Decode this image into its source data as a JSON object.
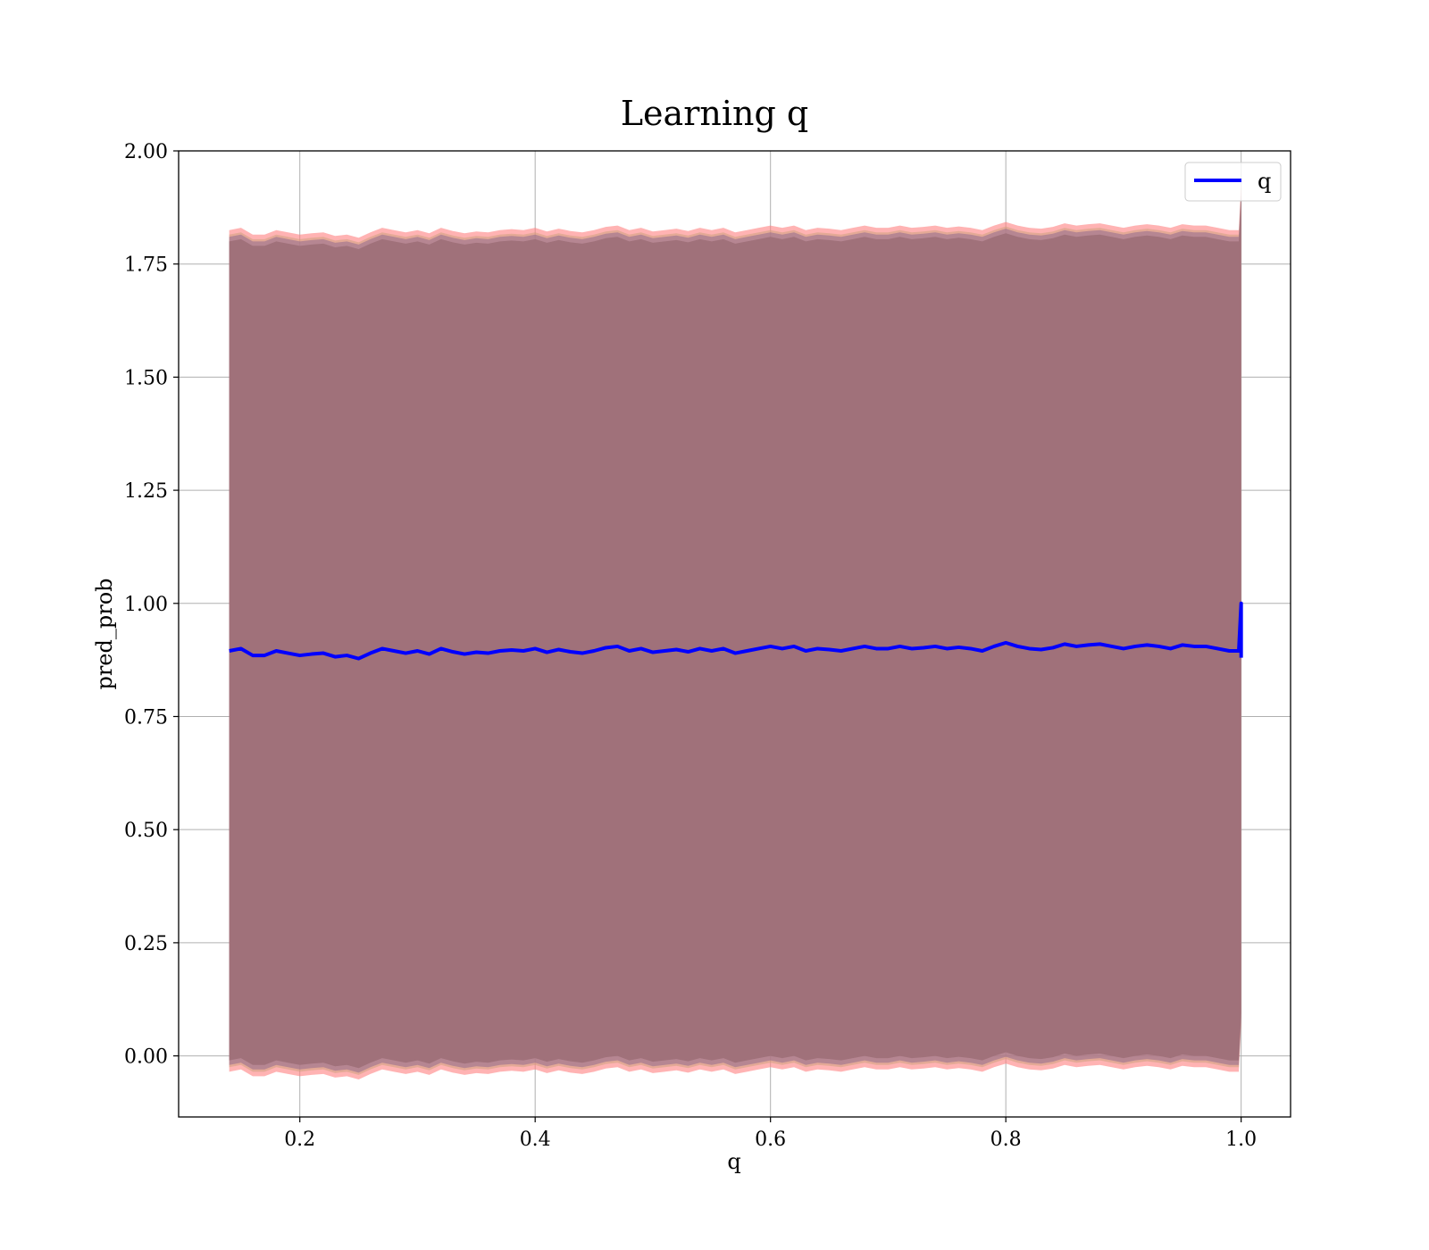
{
  "chart_data": {
    "type": "line",
    "title": "Learning q",
    "xlabel": "q",
    "ylabel": "pred_prob",
    "xlim": [
      0.097,
      1.042
    ],
    "ylim": [
      -0.135,
      2.0
    ],
    "x_ticks": [
      "0.2",
      "0.4",
      "0.6",
      "0.8",
      "1.0"
    ],
    "x_tick_values": [
      0.2,
      0.4,
      0.6,
      0.8,
      1.0
    ],
    "y_ticks": [
      "0.00",
      "0.25",
      "0.50",
      "0.75",
      "1.00",
      "1.25",
      "1.50",
      "1.75",
      "2.00"
    ],
    "y_tick_values": [
      0.0,
      0.25,
      0.5,
      0.75,
      1.0,
      1.25,
      1.5,
      1.75,
      2.0
    ],
    "grid": true,
    "legend": {
      "position": "top-right",
      "entries": [
        "q"
      ]
    },
    "series": [
      {
        "name": "q",
        "color": "#0000ff",
        "x": [
          0.14,
          0.15,
          0.16,
          0.17,
          0.18,
          0.19,
          0.2,
          0.21,
          0.22,
          0.23,
          0.24,
          0.25,
          0.26,
          0.27,
          0.28,
          0.29,
          0.3,
          0.31,
          0.32,
          0.33,
          0.34,
          0.35,
          0.36,
          0.37,
          0.38,
          0.39,
          0.4,
          0.41,
          0.42,
          0.43,
          0.44,
          0.45,
          0.46,
          0.47,
          0.48,
          0.49,
          0.5,
          0.51,
          0.52,
          0.53,
          0.54,
          0.55,
          0.56,
          0.57,
          0.58,
          0.59,
          0.6,
          0.61,
          0.62,
          0.63,
          0.64,
          0.65,
          0.66,
          0.67,
          0.68,
          0.69,
          0.7,
          0.71,
          0.72,
          0.73,
          0.74,
          0.75,
          0.76,
          0.77,
          0.78,
          0.79,
          0.8,
          0.81,
          0.82,
          0.83,
          0.84,
          0.85,
          0.86,
          0.87,
          0.88,
          0.89,
          0.9,
          0.91,
          0.92,
          0.93,
          0.94,
          0.95,
          0.96,
          0.97,
          0.98,
          0.99,
          0.998,
          1.0,
          1.0
        ],
        "values": [
          0.895,
          0.9,
          0.885,
          0.885,
          0.895,
          0.89,
          0.885,
          0.888,
          0.89,
          0.882,
          0.885,
          0.878,
          0.89,
          0.9,
          0.895,
          0.89,
          0.895,
          0.888,
          0.9,
          0.893,
          0.888,
          0.892,
          0.89,
          0.895,
          0.897,
          0.895,
          0.9,
          0.892,
          0.898,
          0.893,
          0.89,
          0.895,
          0.902,
          0.905,
          0.895,
          0.9,
          0.892,
          0.895,
          0.898,
          0.893,
          0.9,
          0.895,
          0.9,
          0.89,
          0.895,
          0.9,
          0.905,
          0.9,
          0.905,
          0.895,
          0.9,
          0.898,
          0.895,
          0.9,
          0.905,
          0.9,
          0.9,
          0.905,
          0.9,
          0.902,
          0.905,
          0.9,
          0.903,
          0.9,
          0.895,
          0.905,
          0.913,
          0.905,
          0.9,
          0.898,
          0.902,
          0.91,
          0.905,
          0.908,
          0.91,
          0.905,
          0.9,
          0.905,
          0.908,
          0.905,
          0.9,
          0.908,
          0.905,
          0.905,
          0.9,
          0.895,
          0.895,
          1.0,
          0.88
        ]
      }
    ],
    "bands": [
      {
        "lower_offset": -0.905,
        "upper_offset": 0.905,
        "color": "#a0717a",
        "opacity": 1.0
      },
      {
        "lower_offset": -0.915,
        "upper_offset": 0.915,
        "color": "#8f6a8f",
        "opacity": 0.55
      },
      {
        "lower_offset": -0.92,
        "upper_offset": 0.92,
        "color": "#c9a07a",
        "opacity": 0.5
      },
      {
        "lower_offset": -0.93,
        "upper_offset": 0.93,
        "color": "#ff8080",
        "opacity": 0.6
      }
    ]
  }
}
